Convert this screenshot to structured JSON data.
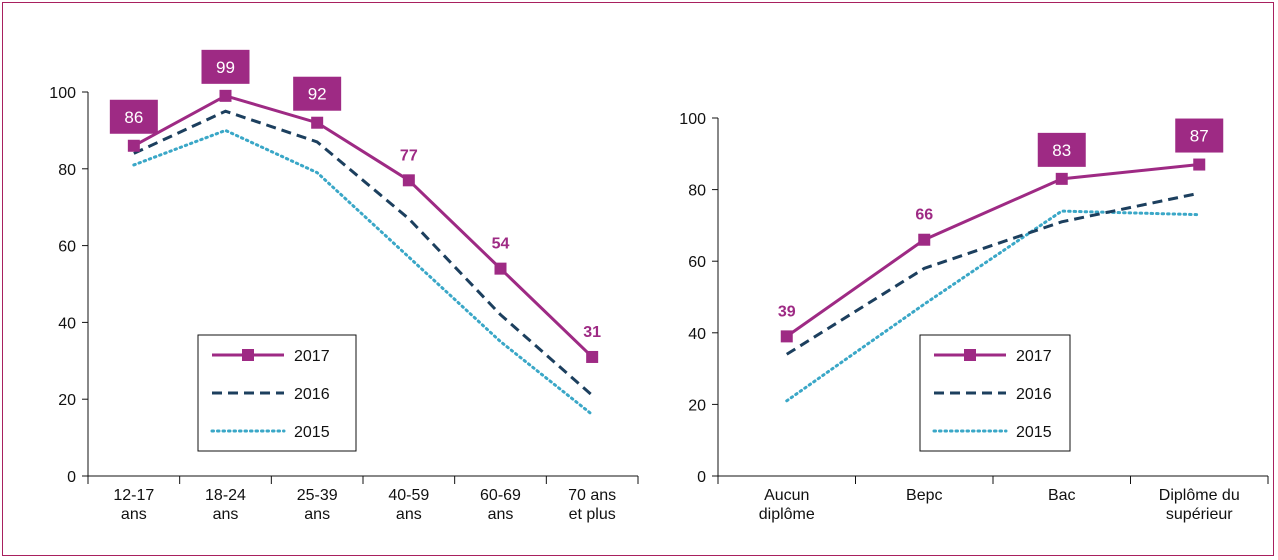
{
  "colors": {
    "s2017": "#9e2a84",
    "s2016": "#1c3f5e",
    "s2015": "#3aa7c7",
    "label_box_text": "#ffffff",
    "frame": "#a8205f"
  },
  "chart_data": [
    {
      "type": "line",
      "categories": [
        [
          "12-17",
          "ans"
        ],
        [
          "18-24",
          "ans"
        ],
        [
          "25-39",
          "ans"
        ],
        [
          "40-59",
          "ans"
        ],
        [
          "60-69",
          "ans"
        ],
        [
          "70 ans",
          "et plus"
        ]
      ],
      "ylim": [
        0,
        100
      ],
      "yticks": [
        "0",
        "20",
        "40",
        "60",
        "80",
        "100"
      ],
      "grid": false,
      "legend_position": "bottom-left",
      "series": [
        {
          "name": "2017",
          "key": "s2017",
          "style": "solid-square",
          "values": [
            86,
            99,
            92,
            77,
            54,
            31
          ]
        },
        {
          "name": "2016",
          "key": "s2016",
          "style": "dashed",
          "values": [
            84,
            95,
            87,
            67,
            42,
            21
          ]
        },
        {
          "name": "2015",
          "key": "s2015",
          "style": "dotted",
          "values": [
            81,
            90,
            79,
            57,
            35,
            16
          ]
        }
      ],
      "data_labels": [
        {
          "index": 0,
          "text": "86",
          "boxed": true
        },
        {
          "index": 1,
          "text": "99",
          "boxed": true
        },
        {
          "index": 2,
          "text": "92",
          "boxed": true
        },
        {
          "index": 3,
          "text": "77",
          "boxed": false
        },
        {
          "index": 4,
          "text": "54",
          "boxed": false
        },
        {
          "index": 5,
          "text": "31",
          "boxed": false
        }
      ],
      "legend": [
        "2017",
        "2016",
        "2015"
      ]
    },
    {
      "type": "line",
      "categories": [
        [
          "Aucun",
          "diplôme"
        ],
        [
          "Bepc"
        ],
        [
          "Bac"
        ],
        [
          "Diplôme du",
          "supérieur"
        ]
      ],
      "ylim": [
        0,
        100
      ],
      "yticks": [
        "0",
        "20",
        "40",
        "60",
        "80",
        "100"
      ],
      "grid": false,
      "legend_position": "bottom-right",
      "series": [
        {
          "name": "2017",
          "key": "s2017",
          "style": "solid-square",
          "values": [
            39,
            66,
            83,
            87
          ]
        },
        {
          "name": "2016",
          "key": "s2016",
          "style": "dashed",
          "values": [
            34,
            58,
            71,
            79
          ]
        },
        {
          "name": "2015",
          "key": "s2015",
          "style": "dotted",
          "values": [
            21,
            48,
            74,
            73
          ]
        }
      ],
      "data_labels": [
        {
          "index": 0,
          "text": "39",
          "boxed": false
        },
        {
          "index": 1,
          "text": "66",
          "boxed": false
        },
        {
          "index": 2,
          "text": "83",
          "boxed": true
        },
        {
          "index": 3,
          "text": "87",
          "boxed": true
        }
      ],
      "legend": [
        "2017",
        "2016",
        "2015"
      ]
    }
  ]
}
